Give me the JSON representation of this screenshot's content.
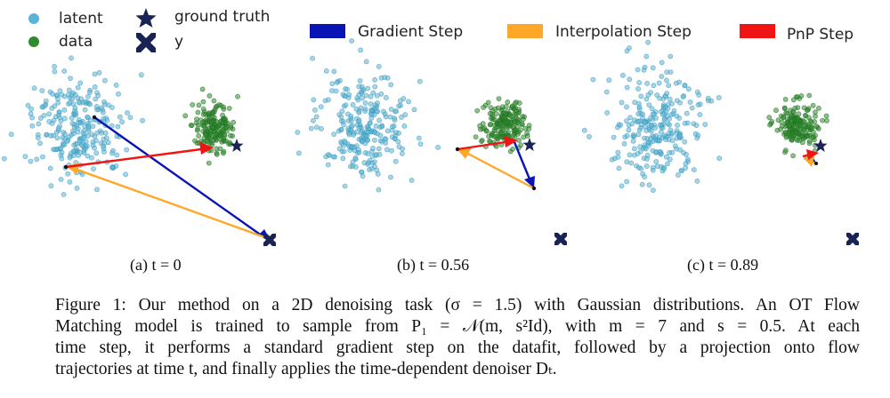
{
  "legend": {
    "latent": "latent",
    "data": "data",
    "ground_truth": "ground truth",
    "y": "y",
    "gradient_step": "Gradient Step",
    "interpolation_step": "Interpolation Step",
    "pnp_step": "PnP Step"
  },
  "colors": {
    "latent": "#5ab4d6",
    "data": "#2e8b2e",
    "ground_truth": "#1a2454",
    "gradient": "#0a14b4",
    "interpolation": "#ffa726",
    "pnp": "#f01414"
  },
  "panels": [
    {
      "caption": "(a) t = 0"
    },
    {
      "caption": "(b) t = 0.56"
    },
    {
      "caption": "(c) t = 0.89"
    }
  ],
  "caption": {
    "lines": [
      "Figure 1: Our method on a 2D denoising task (σ = 1.5) with Gaussian distributions. An OT Flow",
      "Matching model is trained to sample from P₁ = 𝒩(m, s²Id), with m = 7 and s = 0.5. At each",
      "time step, it performs a standard gradient step on the datafit, followed by a projection onto flow",
      "trajectories at time t, and finally applies the time-dependent denoiser Dₜ."
    ]
  }
}
